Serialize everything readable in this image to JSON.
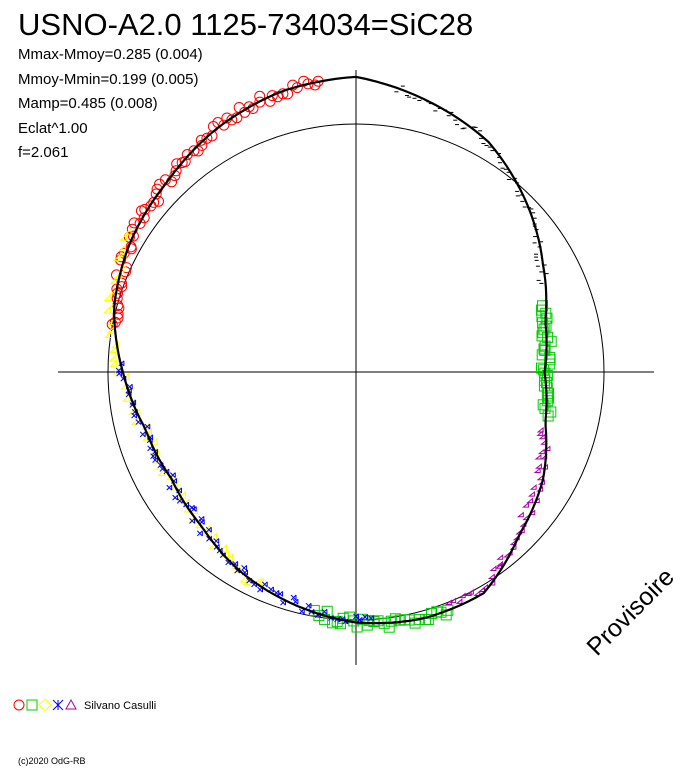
{
  "chart_data": {
    "type": "scatter",
    "projection": "polar",
    "title": "USNO-A2.0 1125-734034=SiC28",
    "stats": [
      "Mmax-Mmoy=0.285 (0.004)",
      "Mmoy-Mmin=0.199 (0.005)",
      "Mamp=0.485 (0.008)",
      "Eclat^1.00",
      "f=2.061"
    ],
    "reference_circle_radius": 1.0,
    "fit_curve": {
      "description": "Black fitted light curve on polar diagram",
      "theta_deg": [
        90,
        105,
        120,
        135,
        150,
        165,
        180,
        195,
        210,
        225,
        240,
        255,
        270,
        285,
        300,
        315,
        330,
        345,
        360,
        375,
        390,
        405,
        420,
        435,
        450
      ],
      "radius": [
        1.19,
        1.17,
        1.13,
        1.08,
        1.05,
        1.01,
        0.94,
        0.88,
        0.86,
        0.88,
        0.93,
        0.97,
        1.01,
        1.03,
        1.03,
        0.93,
        0.87,
        0.79,
        0.76,
        0.79,
        0.87,
        0.97,
        1.07,
        1.13,
        1.19
      ]
    },
    "series": [
      {
        "marker": "circle",
        "color": "#ff0000",
        "theta_range_deg": [
          97,
          170
        ],
        "n": 70
      },
      {
        "marker": "diamond",
        "color": "#ffff00",
        "theta_range_deg": [
          148,
          248
        ],
        "n": 60
      },
      {
        "marker": "square",
        "color": "#00cc00",
        "theta_range_deg": [
          -13,
          20
        ],
        "n": 35
      },
      {
        "marker": "square",
        "color": "#00cc00",
        "theta_range_deg": [
          260,
          292
        ],
        "n": 32
      },
      {
        "marker": "star",
        "color": "#0000ff",
        "theta_range_deg": [
          178,
          275
        ],
        "n": 70
      },
      {
        "marker": "triangle",
        "color": "#aa00aa",
        "theta_range_deg": [
          292,
          343
        ],
        "n": 45
      },
      {
        "marker": "dash",
        "color": "#000000",
        "theta_range_deg": [
          25,
          82
        ],
        "n": 60
      }
    ],
    "legend": {
      "placement": "bottom-left",
      "observer": "Silvano Casulli",
      "markers": [
        {
          "marker": "circle",
          "color": "#ff0000"
        },
        {
          "marker": "square",
          "color": "#00cc00"
        },
        {
          "marker": "diamond",
          "color": "#ffff00"
        },
        {
          "marker": "star",
          "color": "#0000ff"
        },
        {
          "marker": "triangle",
          "color": "#aa00aa"
        }
      ]
    },
    "watermark": "Provisoire",
    "copyright": "(c)2020 OdG-RB",
    "grid": false
  }
}
